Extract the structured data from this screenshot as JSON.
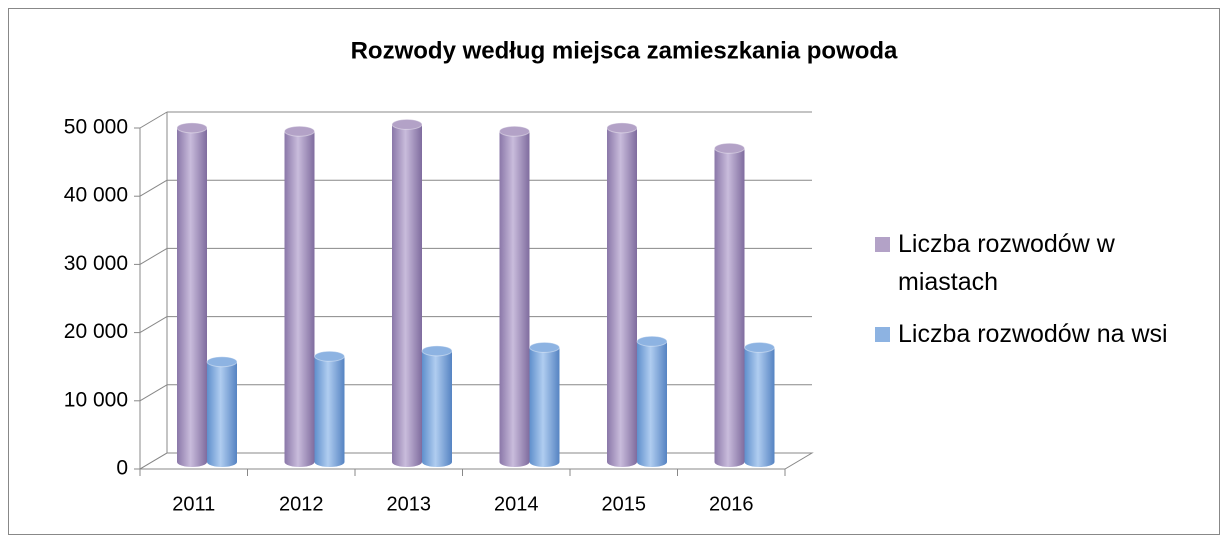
{
  "chart_data": {
    "type": "bar3d",
    "title": "Rozwody według miejsca zamieszkania powoda",
    "categories": [
      "2011",
      "2012",
      "2013",
      "2014",
      "2015",
      "2016"
    ],
    "series": [
      {
        "name": "Liczba rozwodów w miastach",
        "color": "#b3a2c7",
        "values": [
          49000,
          48500,
          49500,
          48500,
          49000,
          46000
        ]
      },
      {
        "name": "Liczba rozwodów na wsi",
        "color": "#8db3e2",
        "values": [
          14700,
          15500,
          16300,
          16800,
          17700,
          16800
        ]
      }
    ],
    "ylim": [
      0,
      50000
    ],
    "yticks": [
      0,
      {
        "value": 10000,
        "label": "10 000"
      },
      {
        "value": 20000,
        "label": "20 000"
      },
      {
        "value": 30000,
        "label": "30 000"
      },
      {
        "value": 40000,
        "label": "40 000"
      },
      {
        "value": 50000,
        "label": "50 000"
      }
    ],
    "grid": true,
    "legend": "right"
  }
}
